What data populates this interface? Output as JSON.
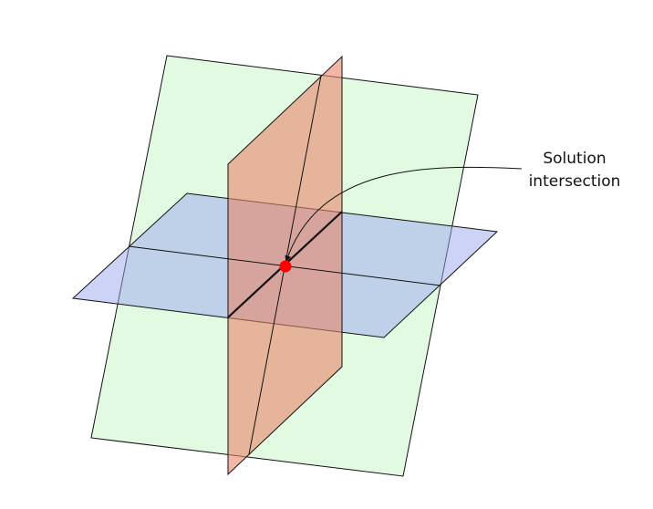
{
  "annotation": {
    "line1": "Solution",
    "line2": "intersection"
  },
  "colors": {
    "plane_green_fill": "#d8f8d8",
    "plane_blue_fill": "#9aa8ee",
    "plane_red_fill": "#e8866a",
    "edge": "#111111",
    "solution_point": "#ff0000"
  }
}
